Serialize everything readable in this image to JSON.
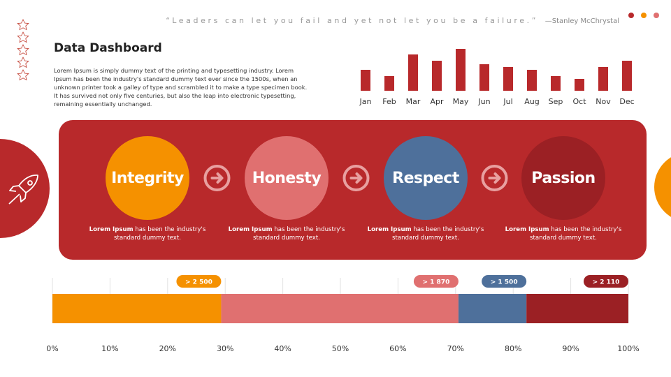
{
  "quote": "“Leaders can let you fail and yet not let you be a failure.”",
  "author": "—Stanley McChrystal",
  "title": "Data Dashboard",
  "body": "Lorem Ipsum is simply dummy text of the printing and typesetting industry. Lorem Ipsum has been the industry's standard dummy text ever since the 1500s, when an unknown printer took a galley of type and scrambled it to make a type specimen book. It has survived not only five centuries, but also the leap into electronic typesetting, remaining essentially  unchanged.",
  "values": [
    {
      "title": "Integrity",
      "bold": "Lorem Ipsum",
      "text": "has been the industry's standard dummy text.",
      "color": "#f59100"
    },
    {
      "title": "Honesty",
      "bold": "Lorem Ipsum",
      "text": "has been the industry's standard dummy text.",
      "color": "#e07070"
    },
    {
      "title": "Respect",
      "bold": "Lorem Ipsum",
      "text": "has been the industry's standard dummy text.",
      "color": "#4e709b"
    },
    {
      "title": "Passion",
      "bold": "Lorem Ipsum",
      "text": "has been the industry's standard dummy text.",
      "color": "#9b2024"
    }
  ],
  "chart_data": [
    {
      "type": "bar",
      "categories": [
        "Jan",
        "Feb",
        "Mar",
        "Apr",
        "May",
        "Jun",
        "Jul",
        "Aug",
        "Sep",
        "Oct",
        "Nov",
        "Dec"
      ],
      "values": [
        30,
        21,
        52,
        43,
        60,
        38,
        34,
        30,
        21,
        17,
        34,
        43
      ],
      "color": "#b8292b",
      "ylim": [
        0,
        60
      ]
    },
    {
      "type": "stacked_bar",
      "values": [
        29.3,
        41.2,
        11.8,
        17.7
      ],
      "colors": [
        "#f59100",
        "#e07070",
        "#4e709b",
        "#9b2024"
      ],
      "annotations": [
        "> 2 500",
        "> 1 870",
        "> 1 500",
        "> 2 110"
      ],
      "xlim": [
        0,
        100
      ],
      "grid": true,
      "xticks": [
        {
          "value": 0,
          "label": "0%"
        },
        {
          "value": 10,
          "label": "10%"
        },
        {
          "value": 20,
          "label": "20%"
        },
        {
          "value": 30,
          "label": "30%"
        },
        {
          "value": 40,
          "label": "40%"
        },
        {
          "value": 50,
          "label": "50%"
        },
        {
          "value": 60,
          "label": "60%"
        },
        {
          "value": 70,
          "label": "70%"
        },
        {
          "value": 80,
          "label": "80%"
        },
        {
          "value": 90,
          "label": "90%"
        },
        {
          "value": 100,
          "label": "100%"
        }
      ]
    }
  ]
}
